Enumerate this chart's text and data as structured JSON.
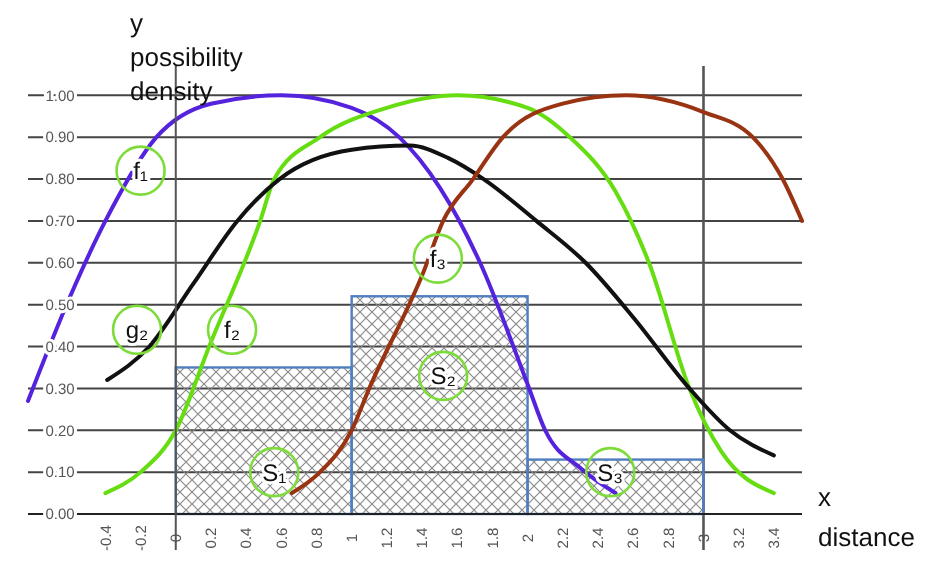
{
  "chart_data": {
    "type": "line",
    "xlabel": "x distance",
    "ylabel": "y possibility density",
    "xlim": [
      -0.84,
      3.56
    ],
    "ylim": [
      0,
      1.07
    ],
    "xticks": [
      -0.4,
      -0.2,
      0,
      0.2,
      0.4,
      0.6,
      0.8,
      1,
      1.2,
      1.4,
      1.6,
      1.8,
      2,
      2.2,
      2.4,
      2.6,
      2.8,
      3,
      3.2,
      3.4
    ],
    "yticks": [
      {
        "value": 0,
        "label": "0.00"
      },
      {
        "value": 0.1,
        "label": "0.10"
      },
      {
        "value": 0.2,
        "label": "0.20"
      },
      {
        "value": 0.3,
        "label": "0.30"
      },
      {
        "value": 0.4,
        "label": "0.40"
      },
      {
        "value": 0.5,
        "label": "0.50"
      },
      {
        "value": 0.6,
        "label": "0.60"
      },
      {
        "value": 0.7,
        "label": "0.70"
      },
      {
        "value": 0.8,
        "label": "0.80"
      },
      {
        "value": 0.9,
        "label": "0.90"
      },
      {
        "value": 1,
        "label": "1.00"
      }
    ],
    "grid": "y",
    "marker": "none",
    "line_style": "solid",
    "ref_lines": [
      {
        "axis": "x",
        "value": 3,
        "color": "#555555"
      }
    ],
    "series": [
      {
        "type": "histogram",
        "color": "#4f7fbf",
        "bins": [
          0,
          1,
          2,
          3
        ],
        "values": [
          0.35,
          0.52,
          0.13
        ]
      },
      {
        "color": "#5522dd",
        "x": [
          -0.84,
          -0.6,
          -0.4,
          -0.11,
          0.2,
          0.6,
          1.0,
          1.27,
          1.5,
          1.73,
          2.0,
          2.1,
          2.3,
          2.5
        ],
        "values": [
          0.27,
          0.52,
          0.7,
          0.9,
          0.98,
          1.0,
          0.97,
          0.9,
          0.78,
          0.6,
          0.31,
          0.2,
          0.11,
          0.05
        ]
      },
      {
        "color": "#66dd11",
        "x": [
          -0.4,
          -0.2,
          0,
          0.19,
          0.48,
          0.56,
          0.82,
          1.2,
          1.6,
          2.0,
          2.24,
          2.5,
          2.69,
          2.92,
          3.1,
          3.4
        ],
        "values": [
          0.05,
          0.1,
          0.2,
          0.4,
          0.7,
          0.8,
          0.9,
          0.97,
          1.0,
          0.97,
          0.9,
          0.77,
          0.6,
          0.3,
          0.15,
          0.05
        ]
      },
      {
        "color": "#111111",
        "x": [
          -0.39,
          -0.15,
          0.1,
          0.35,
          0.59,
          1.0,
          1.33,
          1.55,
          1.75,
          2.05,
          2.33,
          2.6,
          2.92,
          3.15,
          3.4
        ],
        "values": [
          0.32,
          0.4,
          0.55,
          0.7,
          0.8,
          0.87,
          0.88,
          0.85,
          0.8,
          0.7,
          0.6,
          0.47,
          0.3,
          0.2,
          0.14
        ]
      },
      {
        "color": "#993311",
        "x": [
          0.66,
          0.82,
          1.0,
          1.1,
          1.41,
          1.52,
          1.69,
          1.86,
          2.2,
          2.56,
          3.0,
          3.28,
          3.45,
          3.56
        ],
        "values": [
          0.05,
          0.1,
          0.2,
          0.3,
          0.58,
          0.7,
          0.8,
          0.9,
          0.98,
          1.0,
          0.96,
          0.9,
          0.8,
          0.7
        ]
      }
    ],
    "annotations": [
      {
        "text": "f₁",
        "x": -0.2,
        "y": 0.82
      },
      {
        "text": "g₂",
        "x": -0.22,
        "y": 0.44
      },
      {
        "text": "f₂",
        "x": 0.32,
        "y": 0.44
      },
      {
        "text": "f₃",
        "x": 1.49,
        "y": 0.61
      },
      {
        "text": "S₁",
        "x": 0.56,
        "y": 0.1
      },
      {
        "text": "S₂",
        "x": 1.52,
        "y": 0.33
      },
      {
        "text": "S₃",
        "x": 2.47,
        "y": 0.1
      }
    ]
  }
}
